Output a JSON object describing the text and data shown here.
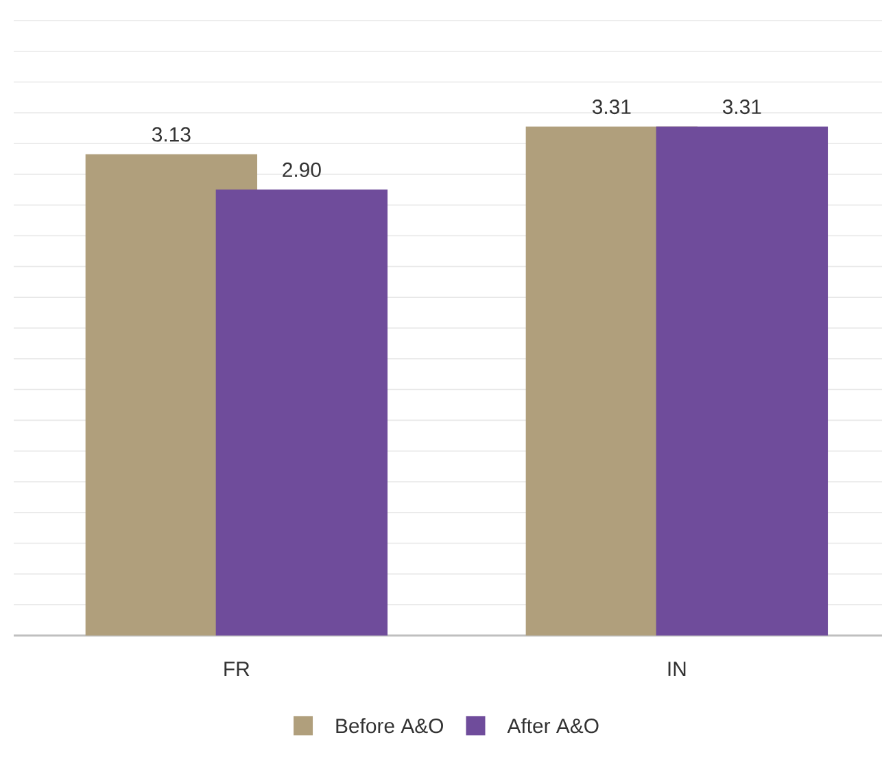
{
  "chart_data": {
    "type": "bar",
    "categories": [
      "FR",
      "IN"
    ],
    "series": [
      {
        "name": "Before A&O",
        "color": "#b09f7c",
        "values": [
          3.13,
          3.31
        ],
        "value_labels": [
          "3.13",
          "3.31"
        ]
      },
      {
        "name": "After A&O",
        "color": "#6f4c9b",
        "values": [
          2.9,
          3.31
        ],
        "value_labels": [
          "2.90",
          "3.31"
        ]
      }
    ],
    "ylim": [
      0,
      4
    ],
    "grid": "y",
    "legend": "bottom",
    "tick_labels": "x"
  }
}
